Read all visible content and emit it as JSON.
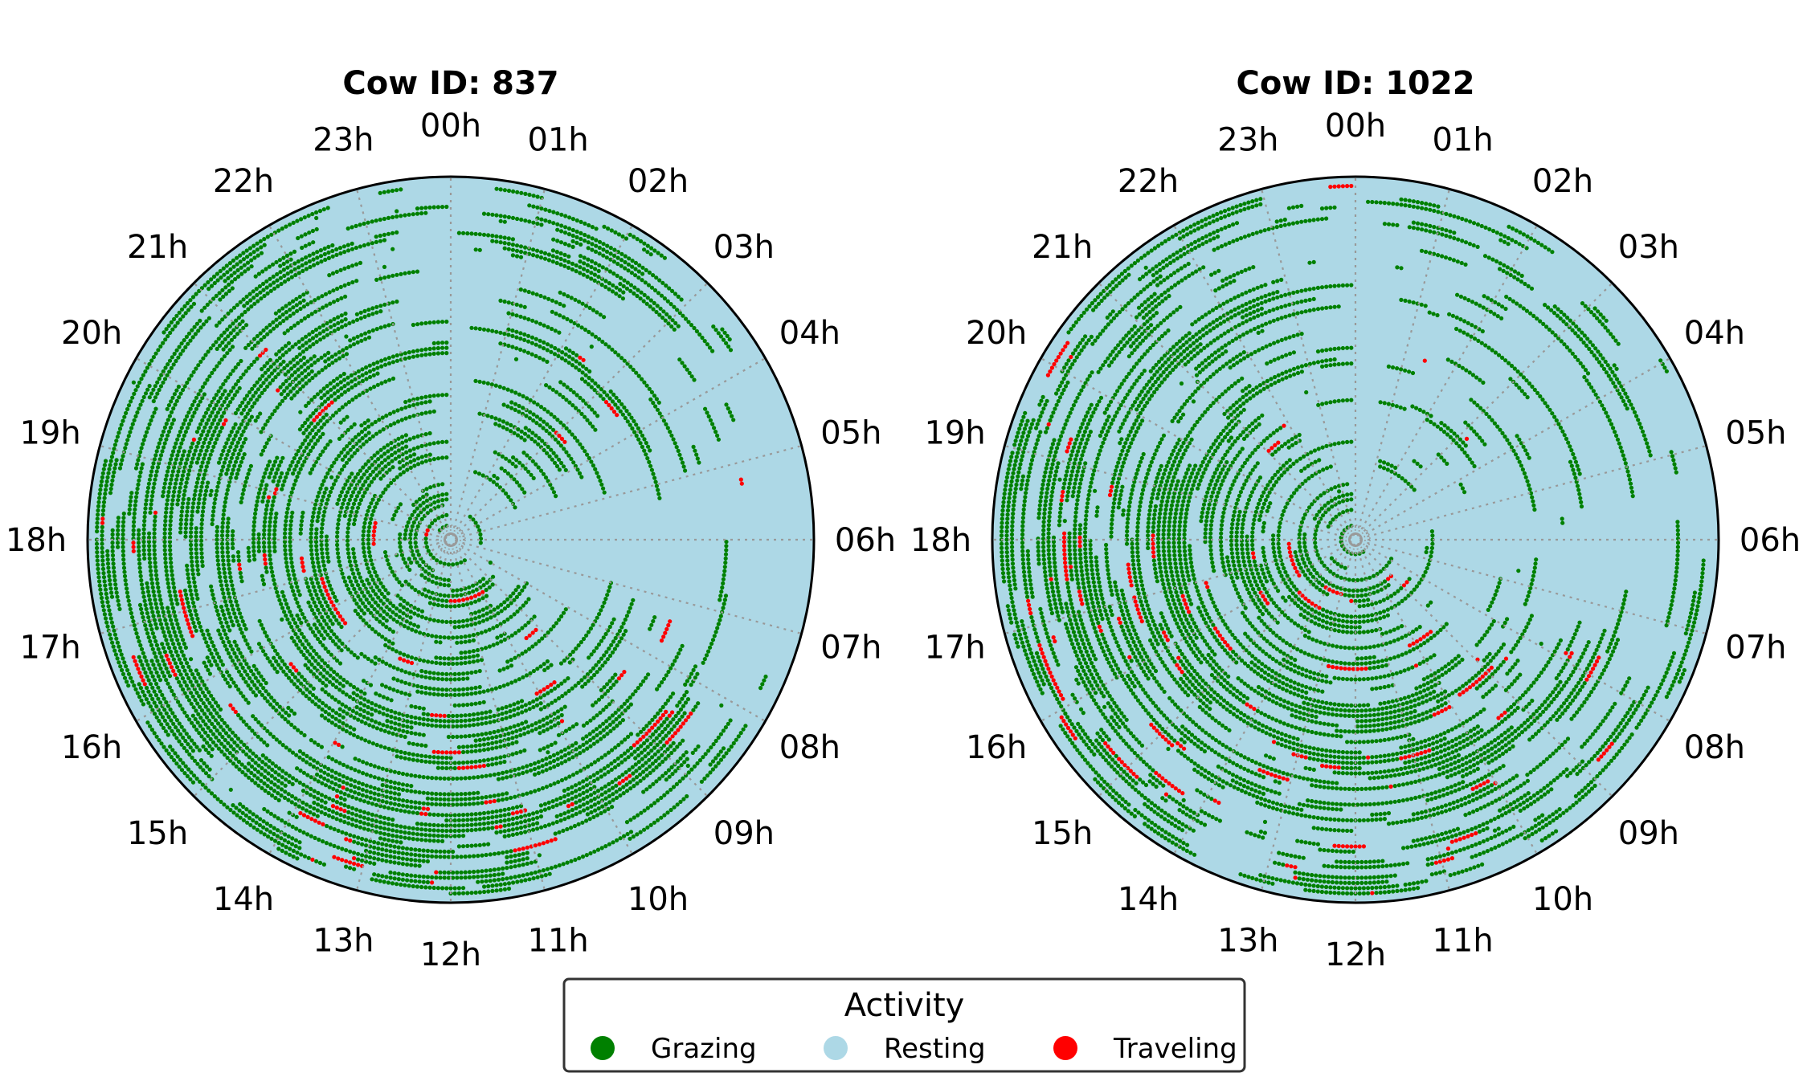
{
  "chart_data": [
    {
      "type": "polar-scatter",
      "title": "Cow ID: 837",
      "theta_labels": [
        "00h",
        "01h",
        "02h",
        "03h",
        "04h",
        "05h",
        "06h",
        "07h",
        "08h",
        "09h",
        "10h",
        "11h",
        "12h",
        "13h",
        "14h",
        "15h",
        "16h",
        "17h",
        "18h",
        "19h",
        "20h",
        "21h",
        "22h",
        "23h"
      ],
      "direction": "clockwise",
      "zero_location": "top",
      "radial_axis": "day index (no tick labels)",
      "grid": true,
      "categories": [
        "Grazing",
        "Resting",
        "Traveling"
      ],
      "activity_by_hour_pct": {
        "Grazing": [
          12,
          30,
          30,
          12,
          5,
          3,
          2,
          8,
          40,
          60,
          62,
          58,
          55,
          55,
          58,
          58,
          62,
          66,
          68,
          62,
          55,
          45,
          30,
          18
        ],
        "Traveling": [
          2,
          4,
          3,
          2,
          1,
          2,
          1,
          1,
          6,
          10,
          12,
          12,
          14,
          14,
          16,
          16,
          18,
          16,
          12,
          10,
          8,
          6,
          4,
          3
        ]
      }
    },
    {
      "type": "polar-scatter",
      "title": "Cow ID: 1022",
      "theta_labels": [
        "00h",
        "01h",
        "02h",
        "03h",
        "04h",
        "05h",
        "06h",
        "07h",
        "08h",
        "09h",
        "10h",
        "11h",
        "12h",
        "13h",
        "14h",
        "15h",
        "16h",
        "17h",
        "18h",
        "19h",
        "20h",
        "21h",
        "22h",
        "23h"
      ],
      "direction": "clockwise",
      "zero_location": "top",
      "radial_axis": "day index (no tick labels)",
      "grid": true,
      "categories": [
        "Grazing",
        "Resting",
        "Traveling"
      ],
      "activity_by_hour_pct": {
        "Grazing": [
          12,
          28,
          28,
          14,
          5,
          5,
          3,
          10,
          42,
          58,
          60,
          56,
          52,
          52,
          55,
          56,
          60,
          64,
          66,
          60,
          52,
          42,
          28,
          16
        ],
        "Traveling": [
          2,
          4,
          3,
          2,
          1,
          2,
          1,
          2,
          8,
          12,
          14,
          12,
          14,
          14,
          16,
          16,
          18,
          16,
          12,
          10,
          8,
          6,
          5,
          3
        ]
      }
    }
  ],
  "legend": {
    "title": "Activity",
    "placement": "bottom-center",
    "items": [
      {
        "label": "Grazing",
        "color": "#008000"
      },
      {
        "label": "Resting",
        "color": "#add8e6"
      },
      {
        "label": "Traveling",
        "color": "#ff0000"
      }
    ]
  },
  "colors": {
    "grazing": "#008000",
    "resting": "#add8e6",
    "traveling": "#ff0000",
    "grid": "#999999"
  }
}
